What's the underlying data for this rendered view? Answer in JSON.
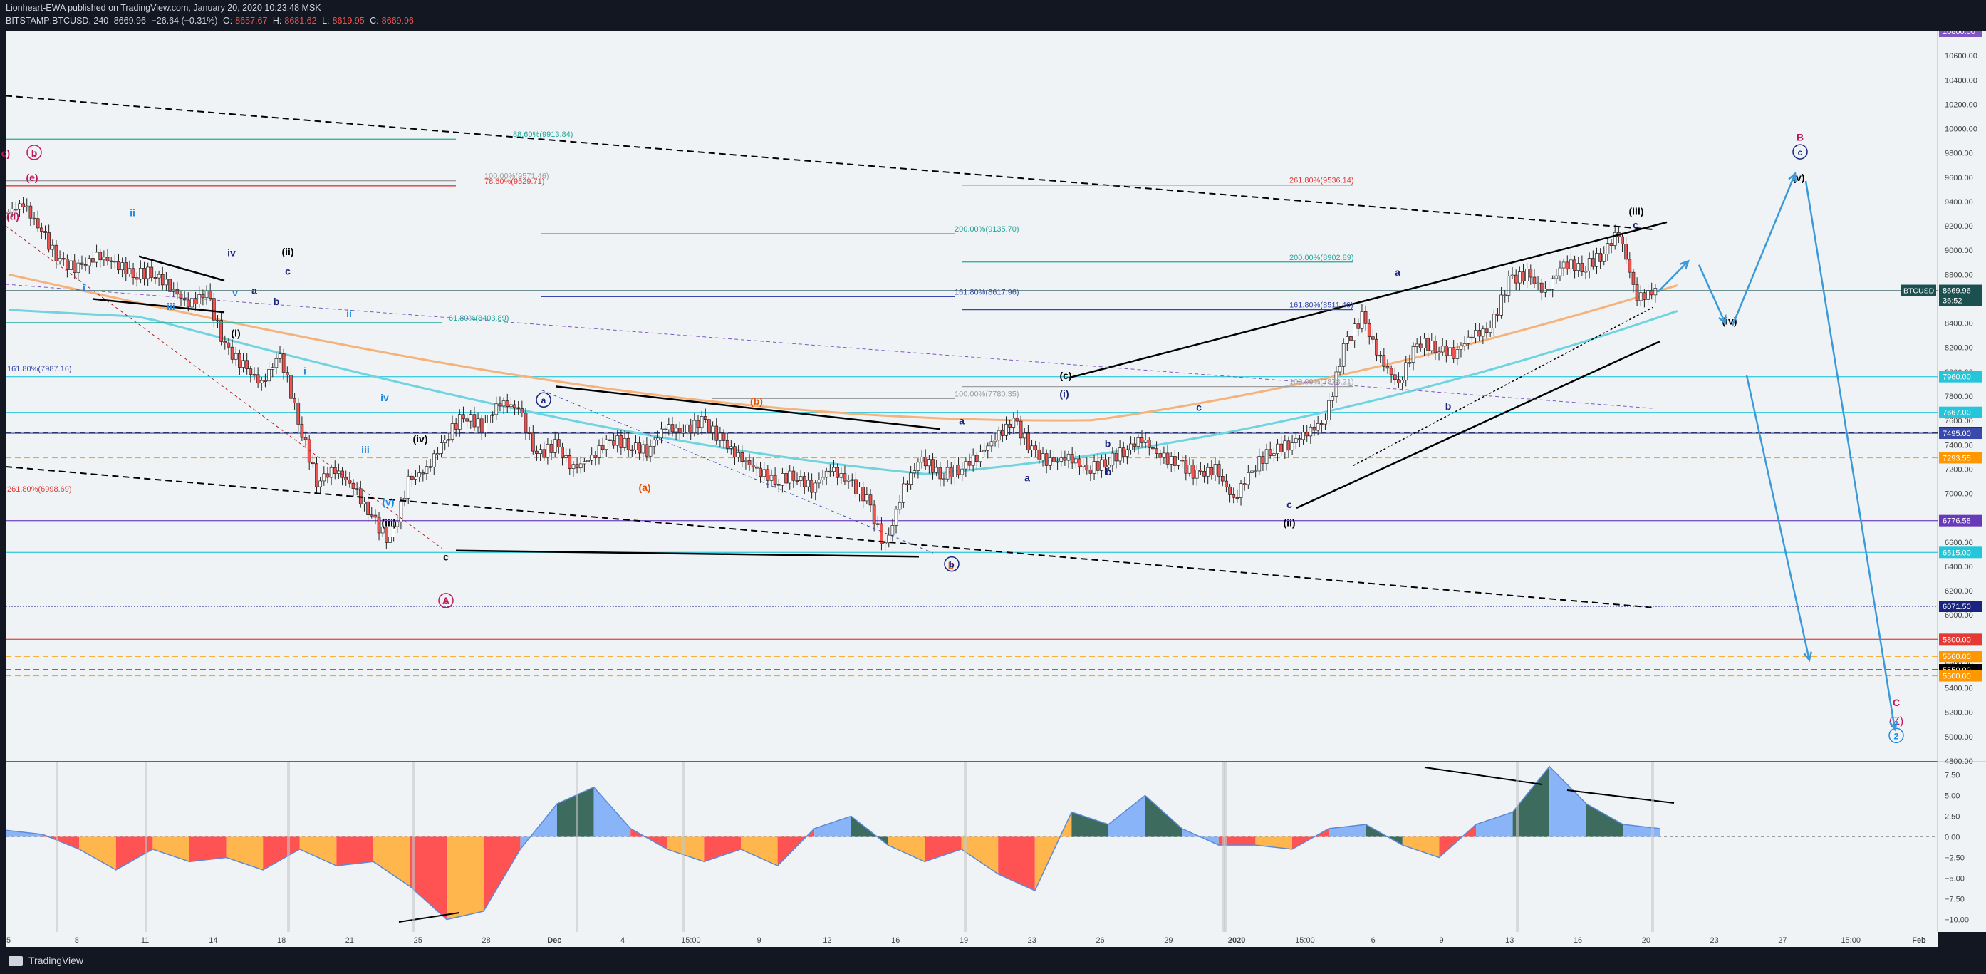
{
  "header": {
    "line1": "Lionheart-EWA published on TradingView.com, January 20, 2020 10:23:48 MSK",
    "symbol": "BITSTAMP:BTCUSD, 240",
    "last": "8669.96",
    "change": "−26.64 (−0.31%)",
    "o_label": "O:",
    "o_value": "8657.67",
    "h_label": "H:",
    "h_value": "8681.62",
    "l_label": "L:",
    "l_value": "8619.95",
    "c_label": "C:",
    "c_value": "8669.96"
  },
  "footer": {
    "brand": "TradingView"
  },
  "colors": {
    "background": "#f0f3f6",
    "bullish": "#26a69a",
    "bearish": "#ef5350",
    "ma_teal": "#6fd3e0",
    "ma_orange": "#f5b27a",
    "wave_blue": "#1a237e",
    "wave_red": "#c2185b",
    "arrow_blue": "#3a9ad9"
  },
  "chart_data": [
    {
      "type": "candlestick",
      "symbol": "BTCUSD",
      "exchange": "BITSTAMP",
      "interval": "240",
      "x_ticks": [
        "5",
        "8",
        "11",
        "14",
        "18",
        "21",
        "25",
        "28",
        "Dec",
        "4",
        "15:00",
        "9",
        "12",
        "16",
        "19",
        "23",
        "26",
        "29",
        "2020",
        "15:00",
        "6",
        "9",
        "13",
        "16",
        "20",
        "23",
        "27",
        "15:00",
        "Feb"
      ],
      "y_ticks": [
        "10600.00",
        "10400.00",
        "10200.00",
        "10000.00",
        "9800.00",
        "9600.00",
        "9400.00",
        "9200.00",
        "9000.00",
        "8800.00",
        "8600.00",
        "8400.00",
        "8200.00",
        "8000.00",
        "7800.00",
        "7600.00",
        "7400.00",
        "7200.00",
        "7000.00",
        "6800.00",
        "6600.00",
        "6400.00",
        "6200.00",
        "6000.00",
        "5800.00",
        "5600.00",
        "5400.00",
        "5200.00",
        "5000.00",
        "4800.00"
      ],
      "ylim": [
        4800,
        10800
      ],
      "top_tag": "10800.00",
      "close_path": [
        [
          0,
          9300
        ],
        [
          1,
          9380
        ],
        [
          2,
          9150
        ],
        [
          3,
          8900
        ],
        [
          4,
          8850
        ],
        [
          5,
          8950
        ],
        [
          6,
          8900
        ],
        [
          7,
          8800
        ],
        [
          8,
          8820
        ],
        [
          9,
          8700
        ],
        [
          10,
          8550
        ],
        [
          11,
          8650
        ],
        [
          12,
          8200
        ],
        [
          13,
          8050
        ],
        [
          14,
          7900
        ],
        [
          15,
          8150
        ],
        [
          16,
          7600
        ],
        [
          17,
          7100
        ],
        [
          18,
          7200
        ],
        [
          19,
          7050
        ],
        [
          20,
          6800
        ],
        [
          21,
          6600
        ],
        [
          22,
          7100
        ],
        [
          23,
          7200
        ],
        [
          24,
          7450
        ],
        [
          25,
          7650
        ],
        [
          26,
          7550
        ],
        [
          27,
          7750
        ],
        [
          28,
          7700
        ],
        [
          29,
          7300
        ],
        [
          30,
          7400
        ],
        [
          31,
          7200
        ],
        [
          32,
          7300
        ],
        [
          33,
          7450
        ],
        [
          34,
          7400
        ],
        [
          35,
          7350
        ],
        [
          36,
          7550
        ],
        [
          37,
          7500
        ],
        [
          38,
          7600
        ],
        [
          39,
          7450
        ],
        [
          40,
          7300
        ],
        [
          41,
          7200
        ],
        [
          42,
          7100
        ],
        [
          43,
          7150
        ],
        [
          44,
          7050
        ],
        [
          45,
          7200
        ],
        [
          46,
          7100
        ],
        [
          47,
          6950
        ],
        [
          48,
          6550
        ],
        [
          49,
          7050
        ],
        [
          50,
          7300
        ],
        [
          51,
          7150
        ],
        [
          52,
          7200
        ],
        [
          53,
          7300
        ],
        [
          54,
          7450
        ],
        [
          55,
          7600
        ],
        [
          56,
          7350
        ],
        [
          57,
          7250
        ],
        [
          58,
          7300
        ],
        [
          59,
          7200
        ],
        [
          60,
          7250
        ],
        [
          61,
          7350
        ],
        [
          62,
          7450
        ],
        [
          63,
          7300
        ],
        [
          64,
          7250
        ],
        [
          65,
          7150
        ],
        [
          66,
          7200
        ],
        [
          67,
          6950
        ],
        [
          68,
          7200
        ],
        [
          69,
          7350
        ],
        [
          70,
          7400
        ],
        [
          71,
          7500
        ],
        [
          72,
          7600
        ],
        [
          73,
          8200
        ],
        [
          74,
          8450
        ],
        [
          75,
          8100
        ],
        [
          76,
          7900
        ],
        [
          77,
          8250
        ],
        [
          78,
          8200
        ],
        [
          79,
          8150
        ],
        [
          80,
          8300
        ],
        [
          81,
          8350
        ],
        [
          82,
          8750
        ],
        [
          83,
          8800
        ],
        [
          84,
          8650
        ],
        [
          85,
          8900
        ],
        [
          86,
          8850
        ],
        [
          87,
          8950
        ],
        [
          88,
          9150
        ],
        [
          89,
          8600
        ],
        [
          90,
          8670
        ]
      ],
      "price_levels": [
        {
          "label": "10800.00",
          "value": 10800,
          "color": "#7e57c2"
        },
        {
          "label": "7960.00",
          "value": 7960,
          "color": "#26c6da"
        },
        {
          "label": "7667.00",
          "value": 7667,
          "color": "#26c6da"
        },
        {
          "label": "7500.00",
          "value": 7500,
          "color": "#000000"
        },
        {
          "label": "7495.00",
          "value": 7495,
          "color": "#3949ab"
        },
        {
          "label": "7293.55",
          "value": 7293.55,
          "color": "#ff9800"
        },
        {
          "label": "6776.58",
          "value": 6776.58,
          "color": "#673ab7"
        },
        {
          "label": "6515.00",
          "value": 6515,
          "color": "#26c6da"
        },
        {
          "label": "6071.50",
          "value": 6071.5,
          "color": "#1a237e"
        },
        {
          "label": "5800.00",
          "value": 5800,
          "color": "#e53935"
        },
        {
          "label": "5660.00",
          "value": 5660,
          "color": "#ff9800"
        },
        {
          "label": "5550.00",
          "value": 5550,
          "color": "#000000"
        },
        {
          "label": "5500.00",
          "value": 5500,
          "color": "#ff9800"
        }
      ],
      "last_price": {
        "label": "BTCUSD",
        "value": "8669.96",
        "countdown": "36:52"
      },
      "fib_labels": [
        "88.60%(9913.84)",
        "100.00%(9571.46)",
        "78.60%(9529.71)",
        "261.80%(9536.14)",
        "200.00%(9135.70)",
        "200.00%(8902.89)",
        "161.80%(8617.96)",
        "161.80%(8511.46)",
        "61.80%(8403.89)",
        "161.80%(7987.16)",
        "100.00%(7878.21)",
        "100.00%(7780.35)",
        "261.80%(6998.69)"
      ],
      "wave_labels": [
        "c)",
        "b",
        "(e)",
        "(d)",
        "ii",
        "i",
        "iii",
        "iv",
        "v",
        "(ii)",
        "a",
        "c",
        "b",
        "(i)",
        "i",
        "ii",
        "iii",
        "iv",
        "(iv)",
        "(iii)",
        "(v)",
        "c",
        "A",
        "a",
        "(b)",
        "(a)",
        "a",
        "b",
        "(c)",
        "b",
        "(i)",
        "c",
        "b",
        "a",
        "(ii)",
        "c",
        "a",
        "b",
        "(iii)",
        "c",
        "(iv)",
        "B",
        "c",
        "(v)",
        "C",
        "(Z)",
        "2"
      ]
    },
    {
      "type": "area",
      "name": "oscillator",
      "y_ticks": [
        "7.50",
        "5.00",
        "2.50",
        "0.00",
        "−2.50",
        "−5.00",
        "−7.50",
        "−10.00"
      ],
      "ylim": [
        -11.5,
        9
      ],
      "x": [
        0,
        2,
        4,
        6,
        8,
        10,
        12,
        14,
        16,
        18,
        20,
        22,
        24,
        26,
        28,
        30,
        32,
        34,
        36,
        38,
        40,
        42,
        44,
        46,
        48,
        50,
        52,
        54,
        56,
        58,
        60,
        62,
        64,
        66,
        68,
        70,
        72,
        74,
        76,
        78,
        80,
        82,
        84,
        86,
        88,
        90
      ],
      "values": [
        0.8,
        0.3,
        -1.5,
        -4,
        -1.5,
        -3,
        -2.5,
        -4,
        -1.5,
        -3.5,
        -3,
        -6,
        -10,
        -9,
        -1.5,
        4,
        6,
        1,
        -1.5,
        -3,
        -1.5,
        -3.5,
        1,
        2.5,
        -1,
        -3,
        -1.5,
        -4.5,
        -6.5,
        3,
        1.5,
        5,
        1,
        -1,
        -1,
        -1.5,
        1,
        1.5,
        -1,
        -2.5,
        1.5,
        3,
        8.5,
        4,
        1.5,
        1
      ],
      "divergence_lines": 3
    }
  ]
}
